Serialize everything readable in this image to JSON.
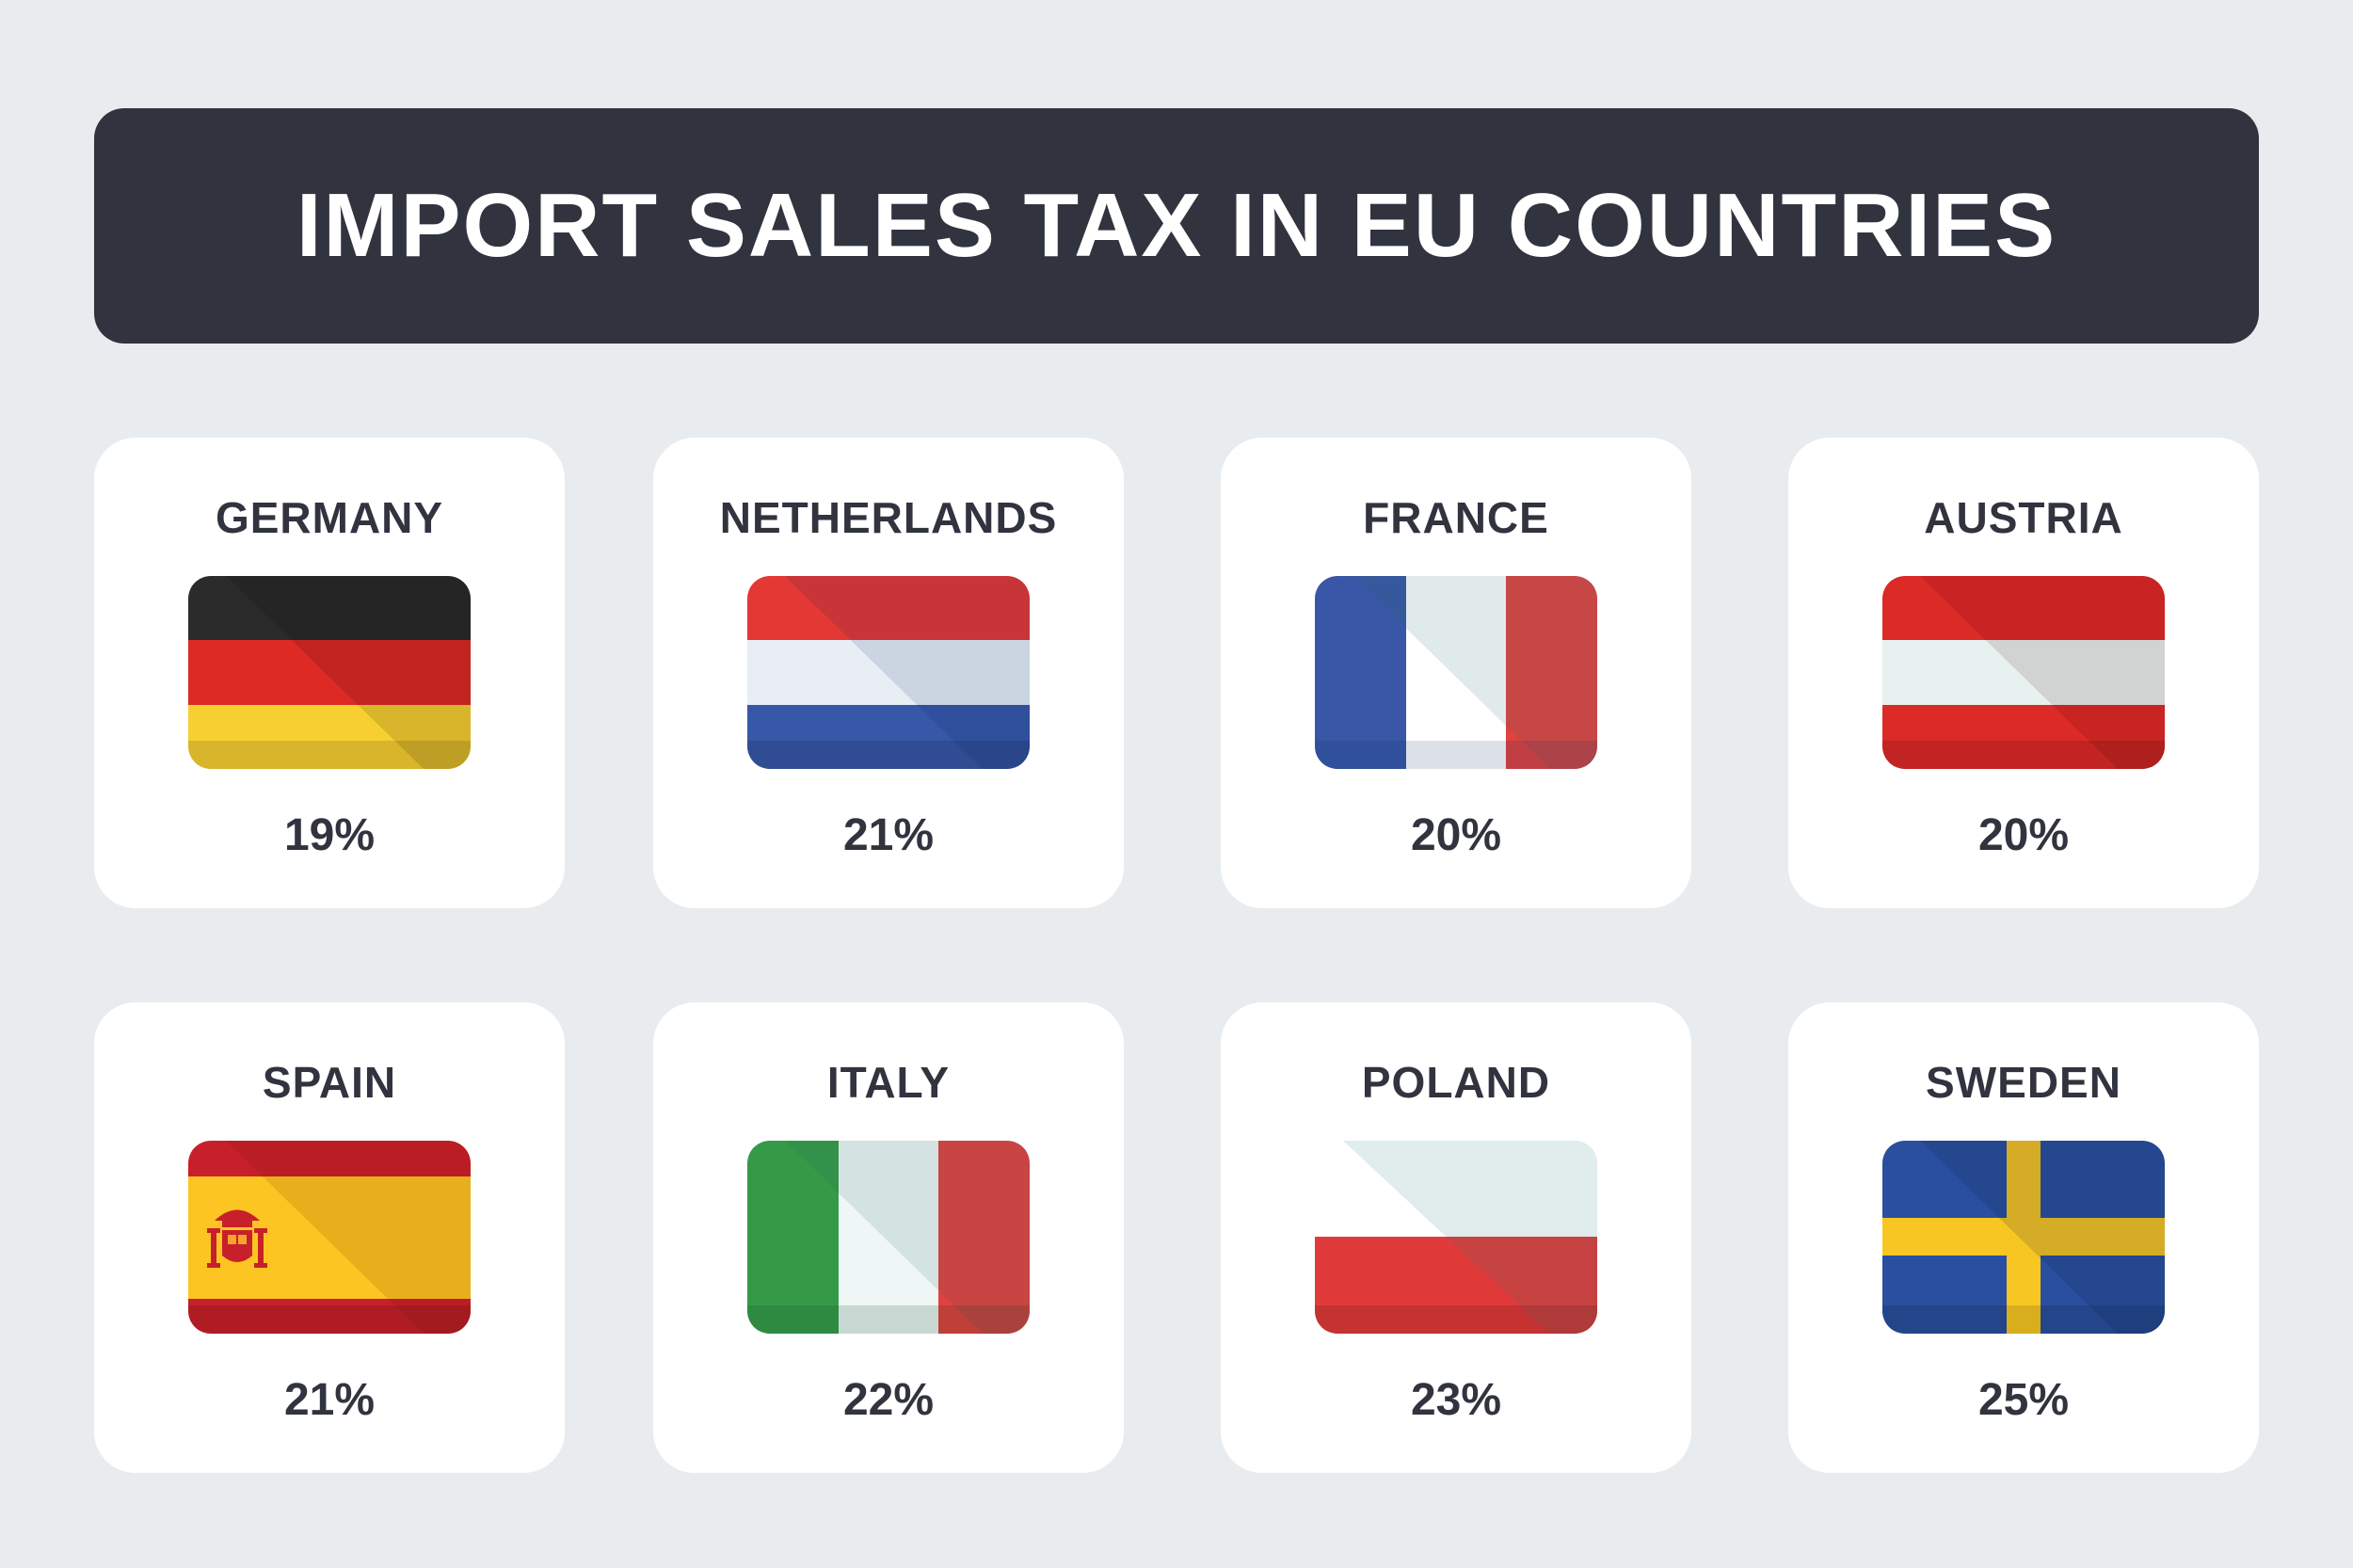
{
  "title": "IMPORT SALES TAX IN EU COUNTRIES",
  "countries": [
    {
      "name": "GERMANY",
      "rate": "19%",
      "flag": "germany-flag"
    },
    {
      "name": "NETHERLANDS",
      "rate": "21%",
      "flag": "netherlands-flag"
    },
    {
      "name": "FRANCE",
      "rate": "20%",
      "flag": "france-flag"
    },
    {
      "name": "AUSTRIA",
      "rate": "20%",
      "flag": "austria-flag"
    },
    {
      "name": "SPAIN",
      "rate": "21%",
      "flag": "spain-flag"
    },
    {
      "name": "ITALY",
      "rate": "22%",
      "flag": "italy-flag"
    },
    {
      "name": "POLAND",
      "rate": "23%",
      "flag": "poland-flag"
    },
    {
      "name": "SWEDEN",
      "rate": "25%",
      "flag": "sweden-flag"
    }
  ],
  "colors": {
    "background": "#e9ecee",
    "banner": "#31343f",
    "card": "#ffffff",
    "text": "#31343f"
  }
}
